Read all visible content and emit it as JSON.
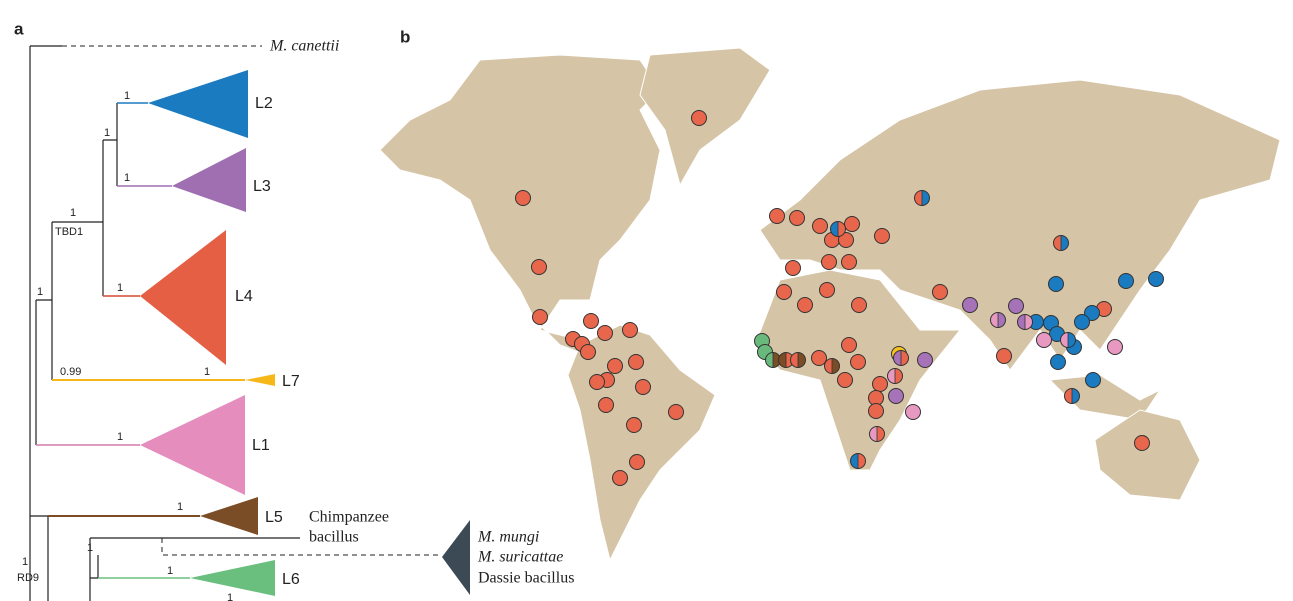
{
  "panels": [
    "a",
    "b"
  ],
  "tree": {
    "outgroup": "M. canettii",
    "lineages": [
      "L2",
      "L3",
      "L4",
      "L7",
      "L1",
      "L5",
      "L6"
    ],
    "supports": [
      1,
      1,
      1,
      1,
      1,
      1,
      0.99,
      1,
      1,
      1,
      1,
      1,
      1,
      1
    ],
    "markers": [
      "TBD1",
      "RD9"
    ],
    "chimpanzee": [
      "Chimpanzee",
      "bacillus"
    ],
    "animal_strains": [
      "M. mungi",
      "M. suricattae",
      "Dassie bacillus"
    ]
  }
}
